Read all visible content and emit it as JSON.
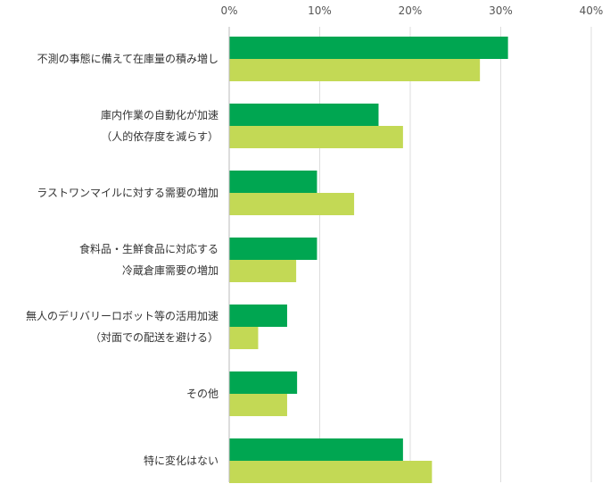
{
  "chart_data": {
    "type": "bar",
    "orientation": "horizontal",
    "categories": [
      [
        "不測の事態に備えて在庫量の積み増し"
      ],
      [
        "庫内作業の自動化が加速",
        "（人的依存度を減らす）"
      ],
      [
        "ラストワンマイルに対する需要の増加"
      ],
      [
        "食料品・生鮮食品に対応する",
        "冷蔵倉庫需要の増加"
      ],
      [
        "無人のデリバリーロボット等の活用加速",
        "（対面での配送を避ける）"
      ],
      [
        "その他"
      ],
      [
        "特に変化はない"
      ]
    ],
    "series": [
      {
        "values": [
          30.8,
          16.5,
          9.7,
          9.7,
          6.4,
          7.5,
          19.2
        ],
        "color": "#00a651"
      },
      {
        "values": [
          27.7,
          19.2,
          13.8,
          7.4,
          3.2,
          6.4,
          22.4
        ],
        "color": "#c3d955"
      }
    ],
    "xlim": [
      0,
      40
    ],
    "xticks": [
      "0%",
      "10%",
      "20%",
      "30%",
      "40%"
    ],
    "grid": true,
    "legend": "none"
  }
}
